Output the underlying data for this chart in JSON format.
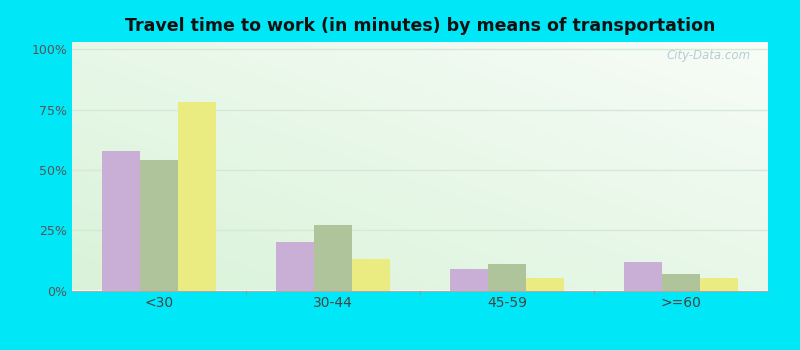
{
  "title": "Travel time to work (in minutes) by means of transportation",
  "categories": [
    "<30",
    "30-44",
    "45-59",
    ">=60"
  ],
  "series": {
    "Public transportation - Iowa": [
      58,
      20,
      9,
      12
    ],
    "Other means - Kingsley": [
      54,
      27,
      11,
      7
    ],
    "Other means - Iowa": [
      78,
      13,
      5,
      5
    ]
  },
  "colors": {
    "Public transportation - Iowa": "#c9afd5",
    "Other means - Kingsley": "#afc49a",
    "Other means - Iowa": "#eaec82"
  },
  "yticks": [
    0,
    25,
    50,
    75,
    100
  ],
  "ytick_labels": [
    "0%",
    "25%",
    "50%",
    "75%",
    "100%"
  ],
  "ylim": [
    0,
    103
  ],
  "outer_background": "#00e8f8",
  "grid_color": "#d8e8d8",
  "watermark": "City-Data.com",
  "bar_width": 0.22
}
